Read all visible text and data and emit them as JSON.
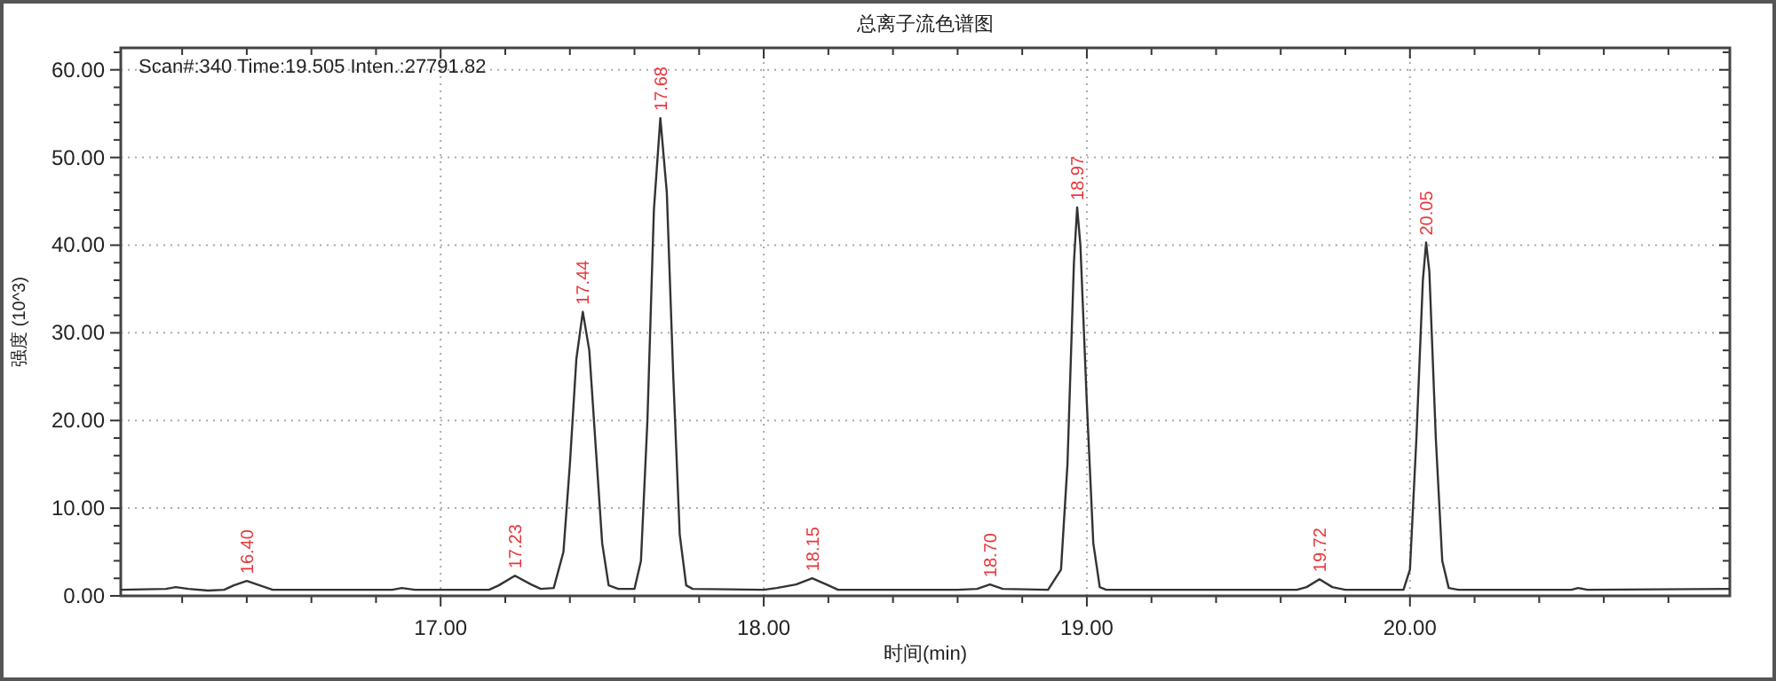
{
  "chart_data": {
    "type": "line",
    "title": "总离子流色谱图",
    "xlabel": "时间(min)",
    "ylabel": "强度 (10^3)",
    "x": [
      16.01,
      16.15,
      16.18,
      16.22,
      16.28,
      16.33,
      16.36,
      16.4,
      16.44,
      16.48,
      16.6,
      16.85,
      16.88,
      16.92,
      17.15,
      17.18,
      17.23,
      17.28,
      17.31,
      17.35,
      17.38,
      17.4,
      17.42,
      17.44,
      17.46,
      17.48,
      17.5,
      17.52,
      17.55,
      17.6,
      17.62,
      17.64,
      17.66,
      17.68,
      17.7,
      17.72,
      17.74,
      17.76,
      17.78,
      18.0,
      18.04,
      18.1,
      18.15,
      18.2,
      18.23,
      18.6,
      18.66,
      18.7,
      18.74,
      18.88,
      18.92,
      18.94,
      18.96,
      18.97,
      18.98,
      19.0,
      19.02,
      19.04,
      19.06,
      19.65,
      19.68,
      19.72,
      19.76,
      19.8,
      19.98,
      20.0,
      20.02,
      20.04,
      20.05,
      20.06,
      20.08,
      20.1,
      20.12,
      20.15,
      20.5,
      20.52,
      20.55,
      20.99
    ],
    "series": [
      {
        "color": "#333333",
        "values": [
          0.7,
          0.8,
          1.0,
          0.8,
          0.6,
          0.7,
          1.2,
          1.7,
          1.2,
          0.7,
          0.7,
          0.7,
          0.9,
          0.7,
          0.7,
          1.2,
          2.3,
          1.3,
          0.8,
          0.9,
          5,
          15,
          27,
          32.4,
          28,
          17,
          6,
          1.2,
          0.8,
          0.8,
          4,
          20,
          44,
          54.5,
          46,
          25,
          7,
          1.2,
          0.8,
          0.7,
          0.9,
          1.3,
          2.0,
          1.2,
          0.7,
          0.7,
          0.8,
          1.3,
          0.8,
          0.7,
          3,
          15,
          38,
          44.3,
          40,
          22,
          6,
          1,
          0.7,
          0.7,
          1.0,
          1.9,
          1.0,
          0.7,
          0.7,
          3,
          18,
          36,
          40.3,
          37,
          18,
          4,
          0.9,
          0.7,
          0.7,
          0.9,
          0.7,
          0.8
        ]
      }
    ],
    "xlim": [
      16.01,
      20.99
    ],
    "ylim": [
      0,
      62.5
    ],
    "xticks": [
      {
        "value": 16.2,
        "label": null
      },
      {
        "value": 16.4,
        "label": null
      },
      {
        "value": 16.6,
        "label": null
      },
      {
        "value": 16.8,
        "label": null
      },
      {
        "value": 17,
        "label": "17.00"
      },
      {
        "value": 17.2,
        "label": null
      },
      {
        "value": 17.4,
        "label": null
      },
      {
        "value": 17.6,
        "label": null
      },
      {
        "value": 17.8,
        "label": null
      },
      {
        "value": 18,
        "label": "18.00"
      },
      {
        "value": 18.2,
        "label": null
      },
      {
        "value": 18.4,
        "label": null
      },
      {
        "value": 18.6,
        "label": null
      },
      {
        "value": 18.8,
        "label": null
      },
      {
        "value": 19,
        "label": "19.00"
      },
      {
        "value": 19.2,
        "label": null
      },
      {
        "value": 19.4,
        "label": null
      },
      {
        "value": 19.6,
        "label": null
      },
      {
        "value": 19.8,
        "label": null
      },
      {
        "value": 20,
        "label": "20.00"
      },
      {
        "value": 20.2,
        "label": null
      },
      {
        "value": 20.4,
        "label": null
      },
      {
        "value": 20.6,
        "label": null
      },
      {
        "value": 20.8,
        "label": null
      }
    ],
    "yticks": [
      {
        "value": 0,
        "label": "0.00"
      },
      {
        "value": 2,
        "label": null
      },
      {
        "value": 4,
        "label": null
      },
      {
        "value": 6,
        "label": null
      },
      {
        "value": 8,
        "label": null
      },
      {
        "value": 10,
        "label": "10.00"
      },
      {
        "value": 12,
        "label": null
      },
      {
        "value": 14,
        "label": null
      },
      {
        "value": 16,
        "label": null
      },
      {
        "value": 18,
        "label": null
      },
      {
        "value": 20,
        "label": "20.00"
      },
      {
        "value": 22,
        "label": null
      },
      {
        "value": 24,
        "label": null
      },
      {
        "value": 26,
        "label": null
      },
      {
        "value": 28,
        "label": null
      },
      {
        "value": 30,
        "label": "30.00"
      },
      {
        "value": 32,
        "label": null
      },
      {
        "value": 34,
        "label": null
      },
      {
        "value": 36,
        "label": null
      },
      {
        "value": 38,
        "label": null
      },
      {
        "value": 40,
        "label": "40.00"
      },
      {
        "value": 42,
        "label": null
      },
      {
        "value": 44,
        "label": null
      },
      {
        "value": 46,
        "label": null
      },
      {
        "value": 48,
        "label": null
      },
      {
        "value": 50,
        "label": "50.00"
      },
      {
        "value": 52,
        "label": null
      },
      {
        "value": 54,
        "label": null
      },
      {
        "value": 56,
        "label": null
      },
      {
        "value": 58,
        "label": null
      },
      {
        "value": 60,
        "label": "60.00"
      },
      {
        "value": 62,
        "label": null
      }
    ],
    "grid": true,
    "annotations": [
      "Scan#:340  Time:19.505  Inten.:27791.82",
      {
        "text": "16.40",
        "x": 16.4,
        "y": 1.7
      },
      {
        "text": "17.23",
        "x": 17.23,
        "y": 2.3
      },
      {
        "text": "17.44",
        "x": 17.44,
        "y": 32.4
      },
      {
        "text": "17.68",
        "x": 17.68,
        "y": 54.5
      },
      {
        "text": "18.15",
        "x": 18.15,
        "y": 2.0
      },
      {
        "text": "18.70",
        "x": 18.7,
        "y": 1.3
      },
      {
        "text": "18.97",
        "x": 18.97,
        "y": 44.3
      },
      {
        "text": "19.72",
        "x": 19.72,
        "y": 1.9
      },
      {
        "text": "20.05",
        "x": 20.05,
        "y": 40.3
      }
    ]
  }
}
